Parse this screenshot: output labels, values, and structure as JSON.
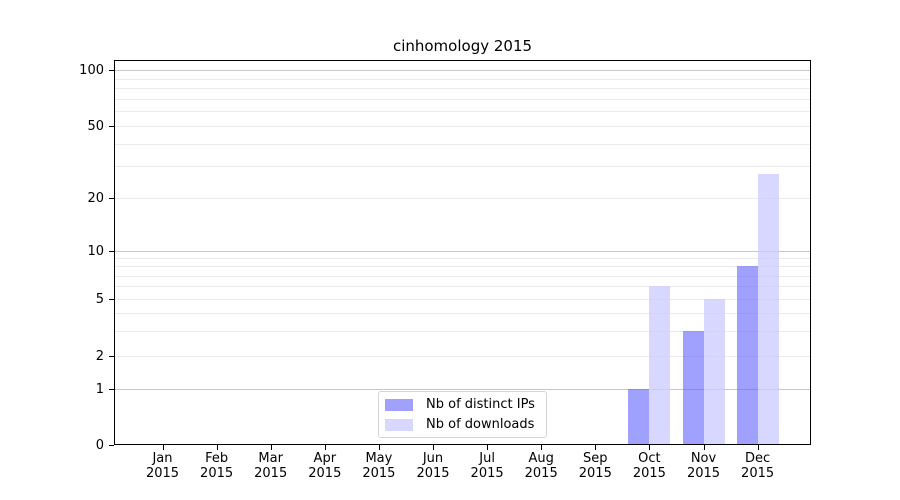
{
  "title": "cinhomology 2015",
  "legend": {
    "items": [
      {
        "label": "Nb of distinct IPs",
        "color": "#9999ff",
        "fill": "rgba(102,102,255,0.62)"
      },
      {
        "label": "Nb of downloads",
        "color": "#ccccff",
        "fill": "rgba(204,204,255,0.78)"
      }
    ]
  },
  "y_axis": {
    "tick_labels": [
      "0",
      "1",
      "2",
      "5",
      "10",
      "20",
      "50",
      "100"
    ]
  },
  "x_axis": {
    "tick_labels": [
      "Jan 2015",
      "Feb 2015",
      "Mar 2015",
      "Apr 2015",
      "May 2015",
      "Jun 2015",
      "Jul 2015",
      "Aug 2015",
      "Sep 2015",
      "Oct 2015",
      "Nov 2015",
      "Dec 2015"
    ]
  },
  "colors": {
    "background": "#ffffff",
    "spine": "#000000",
    "grid_major": "#c6c6c6",
    "grid_minor": "#ebebeb",
    "bar_distinct_ips": "#9999ff",
    "bar_downloads": "#ccccff"
  },
  "chart_data": {
    "type": "bar",
    "title": "cinhomology 2015",
    "categories": [
      {
        "month": "Jan",
        "year": "2015"
      },
      {
        "month": "Feb",
        "year": "2015"
      },
      {
        "month": "Mar",
        "year": "2015"
      },
      {
        "month": "Apr",
        "year": "2015"
      },
      {
        "month": "May",
        "year": "2015"
      },
      {
        "month": "Jun",
        "year": "2015"
      },
      {
        "month": "Jul",
        "year": "2015"
      },
      {
        "month": "Aug",
        "year": "2015"
      },
      {
        "month": "Sep",
        "year": "2015"
      },
      {
        "month": "Oct",
        "year": "2015"
      },
      {
        "month": "Nov",
        "year": "2015"
      },
      {
        "month": "Dec",
        "year": "2015"
      }
    ],
    "series": [
      {
        "name": "Nb of distinct IPs",
        "color": "#9999ff",
        "fill": "rgba(102,102,255,0.62)",
        "values": [
          0,
          0,
          0,
          0,
          0,
          0,
          0,
          0,
          0,
          1,
          3,
          8
        ]
      },
      {
        "name": "Nb of downloads",
        "color": "#ccccff",
        "fill": "rgba(204,204,255,0.78)",
        "values": [
          0,
          0,
          0,
          0,
          0,
          0,
          0,
          0,
          0,
          6,
          5,
          27
        ]
      }
    ],
    "xlabel": "",
    "ylabel": "",
    "yscale": "symlog",
    "yticks": [
      0,
      1,
      2,
      5,
      10,
      20,
      50,
      100
    ],
    "ylim": [
      0,
      113
    ],
    "grid": {
      "orientation": "horizontal",
      "major": [
        1,
        10,
        100
      ],
      "minor": [
        2,
        3,
        4,
        5,
        6,
        7,
        8,
        9,
        20,
        30,
        40,
        50,
        60,
        70,
        80,
        90
      ]
    },
    "legend_position": "lower center"
  }
}
